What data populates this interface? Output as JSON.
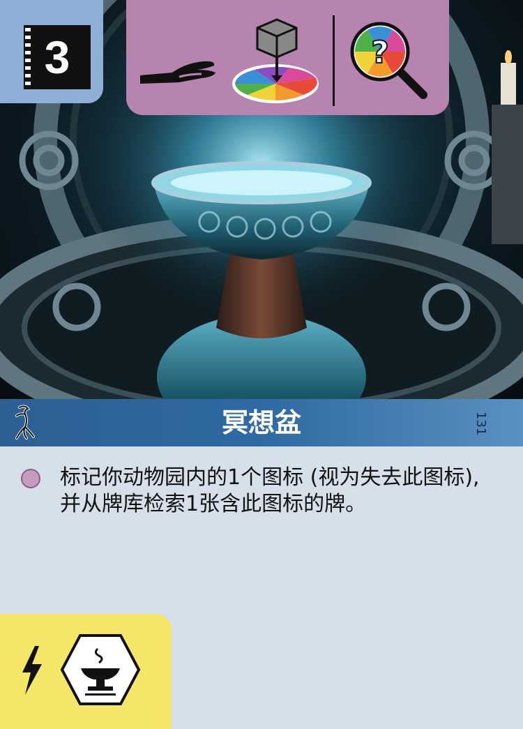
{
  "card": {
    "cost": "3",
    "title": "冥想盆",
    "number": "131",
    "ability_text": "标记你动物园内的1个图标 (视为失去此图标), 并从牌库检索1张含此图标的牌。"
  },
  "icons": {
    "cost_badge": "film-cost-icon",
    "requirements": [
      "hand-icon",
      "spinner-cube-icon",
      "magnifier-question-icon"
    ],
    "title_left": "tree-creature-icon",
    "ability_bullet": "purple-circle-icon",
    "bottom_left": [
      "lightning-icon",
      "pensieve-hex-icon"
    ]
  },
  "colors": {
    "cost_box": "#8fb0d6",
    "requirement_box": "#b784b0",
    "title_band": "#2f6aa2",
    "text_area": "#d6e0ea",
    "tag_box": "#f3e669"
  }
}
